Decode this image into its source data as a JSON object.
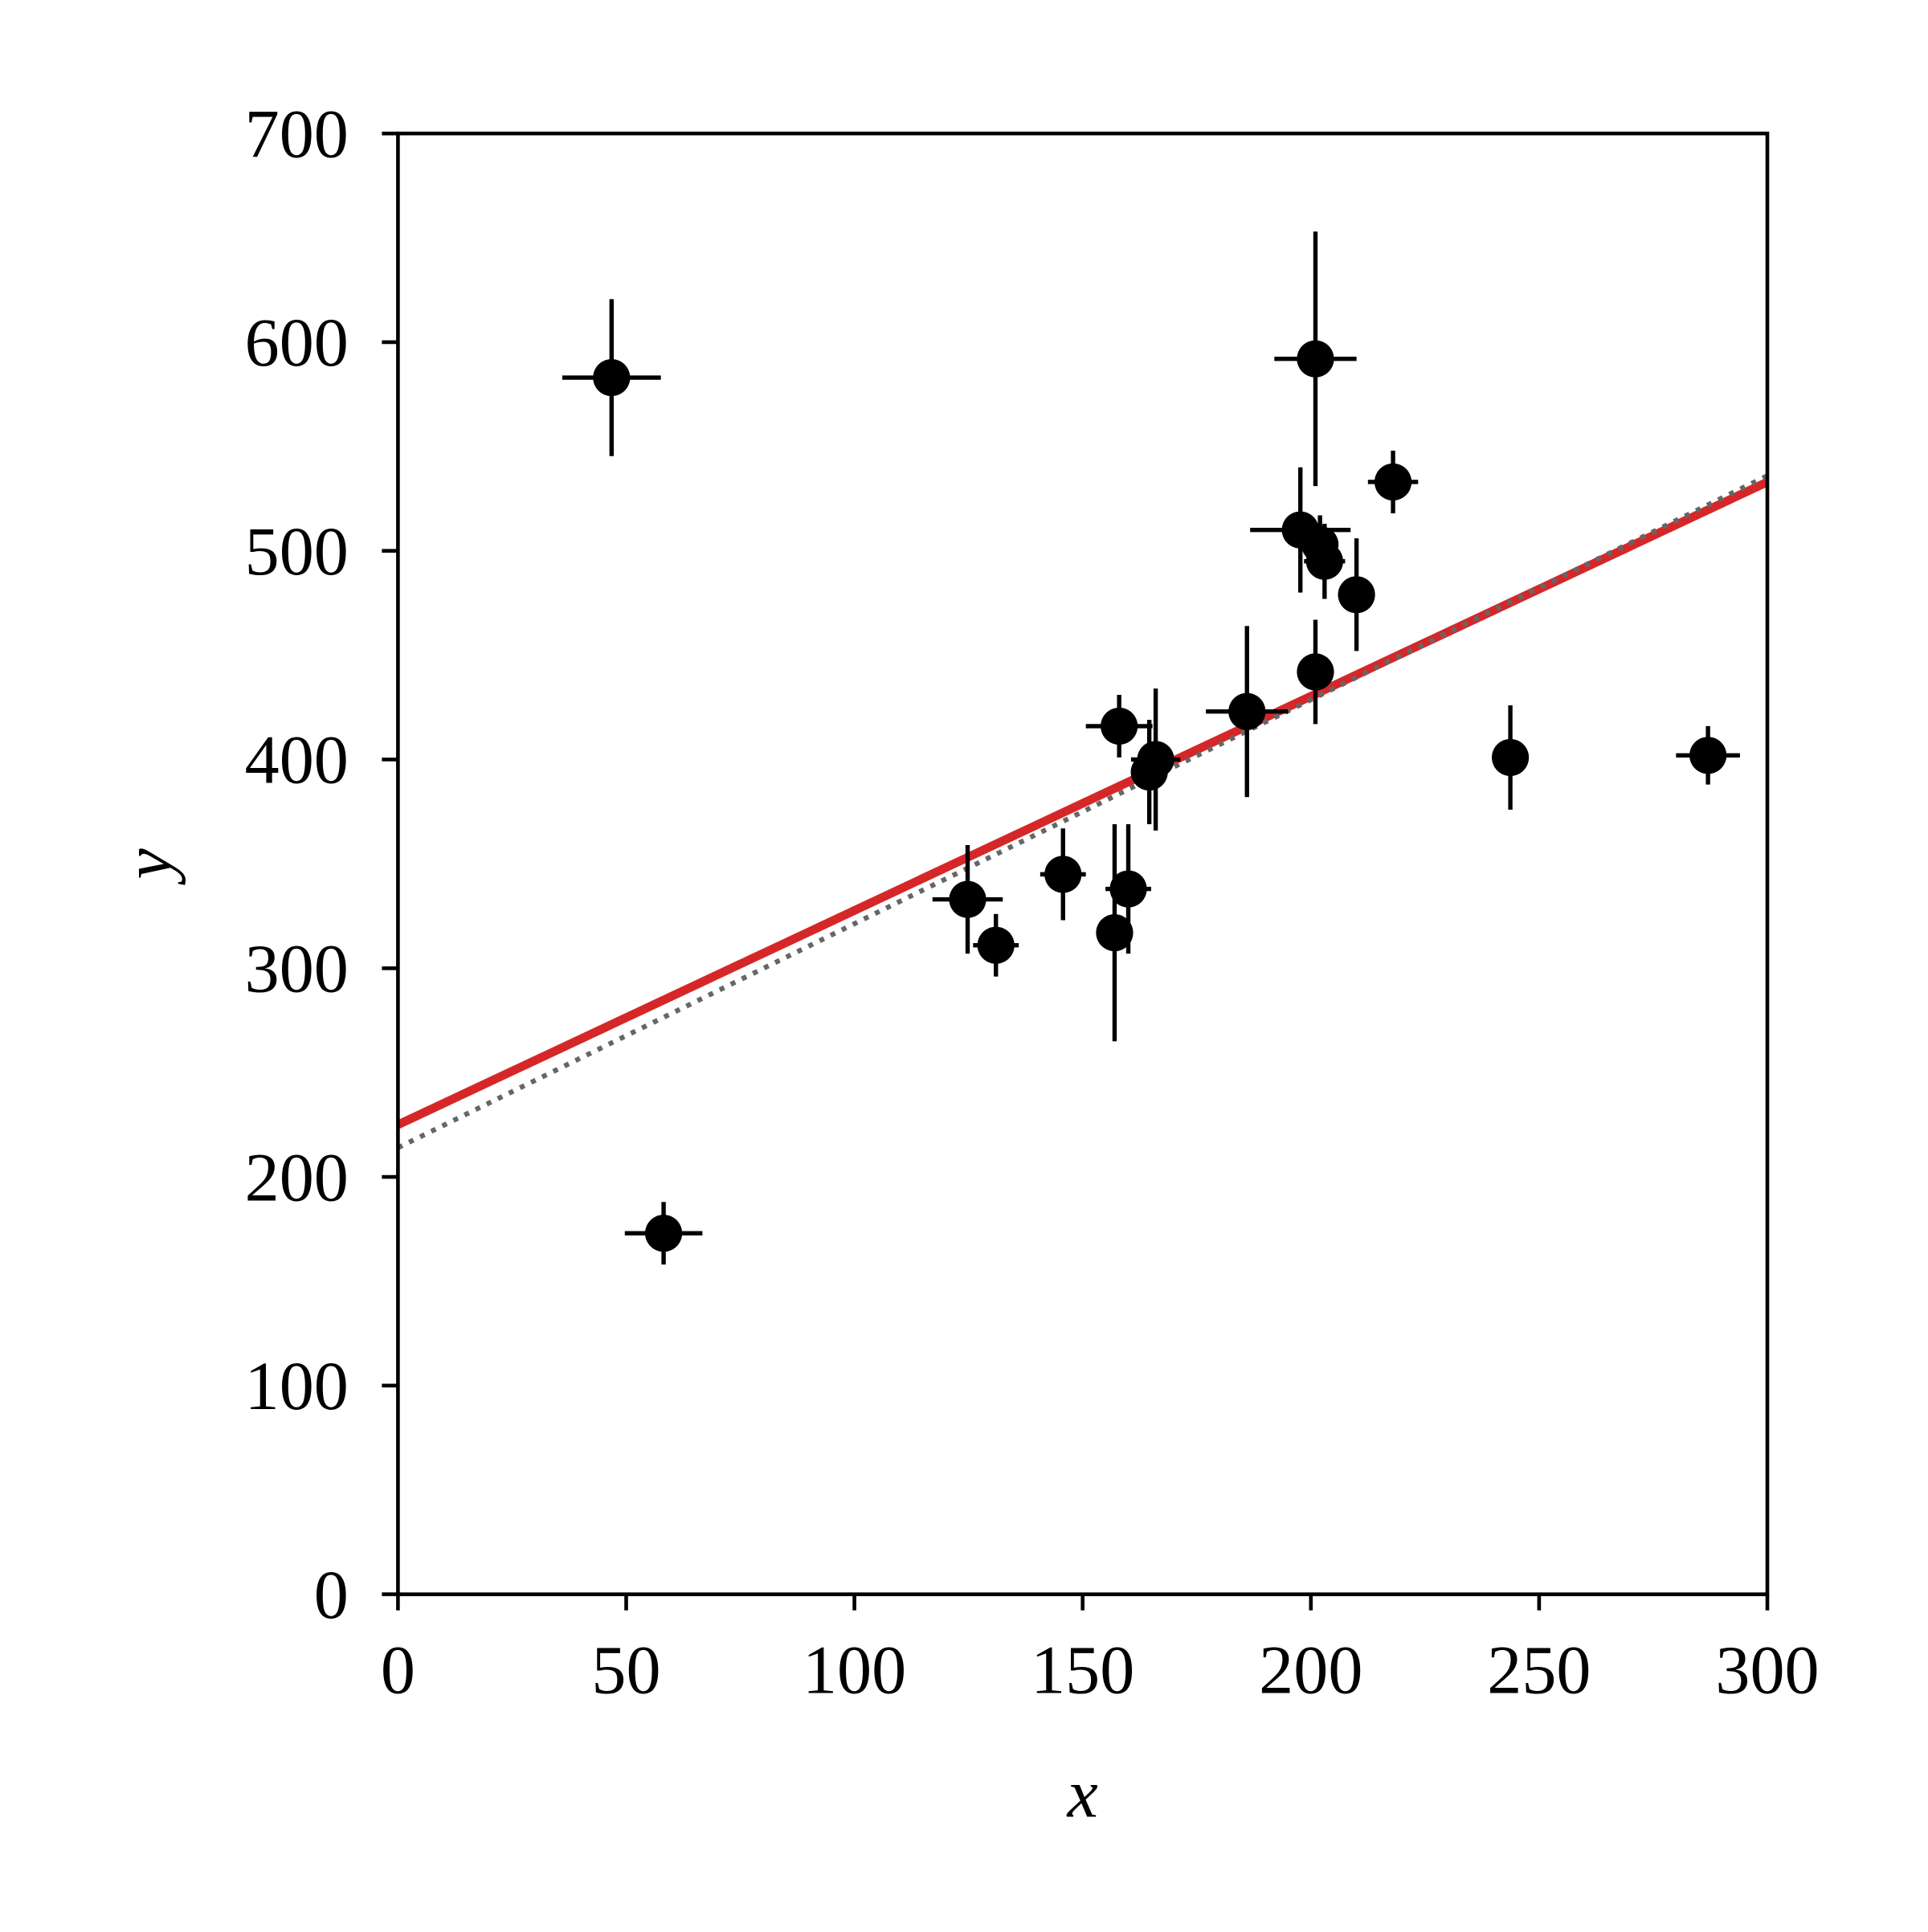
{
  "chart_data": {
    "type": "scatter",
    "x_label": "x",
    "y_label": "y",
    "xlim": [
      0,
      300
    ],
    "ylim": [
      0,
      700
    ],
    "xticks": [
      0,
      50,
      100,
      150,
      200,
      250,
      300
    ],
    "yticks": [
      0,
      100,
      200,
      300,
      400,
      500,
      600,
      700
    ],
    "grid": false,
    "series": [
      {
        "color": "#000000",
        "x": [
          46.8,
          58.2,
          124.8,
          131,
          145.7,
          157,
          158,
          160,
          164.6,
          166,
          186,
          197.7,
          201,
          201,
          202,
          203,
          210,
          218,
          243.7,
          287
        ],
        "values": [
          583,
          173,
          333,
          311,
          345,
          317,
          416,
          338,
          394,
          400,
          423,
          510,
          592,
          442,
          503,
          495,
          479,
          533,
          401,
          402
        ],
        "xerr": [
          10.8,
          8.5,
          7.7,
          5,
          5,
          4,
          7.3,
          5,
          4,
          5.4,
          9,
          11,
          9,
          4,
          4,
          4.5,
          3,
          5.5,
          0,
          7
        ],
        "yerr": [
          37.6,
          15,
          26,
          15,
          22,
          52,
          15,
          31,
          25,
          34,
          41,
          30,
          61,
          25,
          14,
          18,
          27,
          15,
          25,
          14
        ]
      }
    ],
    "lines": [
      {
        "color": "#d62728",
        "style": "solid",
        "x": [
          0,
          300
        ],
        "values": [
          225,
          533
        ]
      },
      {
        "color": "#666666",
        "style": "dotted",
        "x": [
          0,
          300
        ],
        "values": [
          214,
          536
        ]
      }
    ]
  }
}
